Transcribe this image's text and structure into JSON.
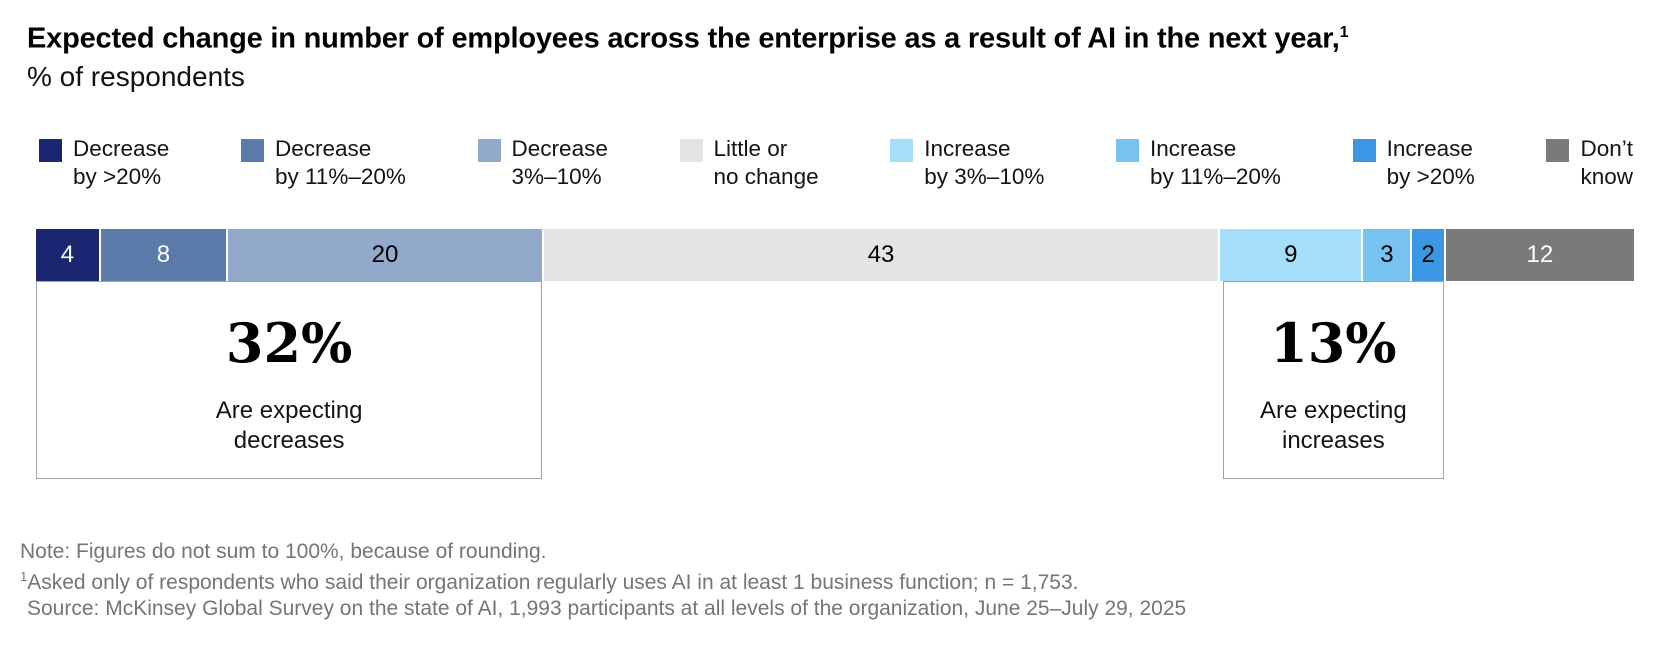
{
  "header": {
    "title": "Expected change in number of employees across the enterprise as a result of AI in the next year,",
    "title_sup": "1",
    "subtitle": "% of respondents"
  },
  "legend": {
    "items": [
      {
        "line1": "Decrease",
        "line2": "by >20%",
        "color": "#1b2671"
      },
      {
        "line1": "Decrease",
        "line2": "by 11%–20%",
        "color": "#5b7caa"
      },
      {
        "line1": "Decrease",
        "line2": "3%–10%",
        "color": "#92a9cb"
      },
      {
        "line1": "Little or",
        "line2": "no change",
        "color": "#e5e4e2"
      },
      {
        "line1": "Increase",
        "line2": "by 3%–10%",
        "color": "#a6ddf7"
      },
      {
        "line1": "Increase",
        "line2": "by 11%–20%",
        "color": "#77c2ef"
      },
      {
        "line1": "Increase",
        "line2": "by >20%",
        "color": "#3b97e4"
      },
      {
        "line1": "Don’t",
        "line2": "know",
        "color": "#7a7a7a"
      }
    ]
  },
  "chart_data": {
    "type": "bar",
    "stacked": true,
    "orientation": "horizontal",
    "title": "Expected change in number of employees across the enterprise as a result of AI in the next year",
    "unit": "% of respondents",
    "categories": [
      "Decrease by >20%",
      "Decrease by 11%–20%",
      "Decrease 3%–10%",
      "Little or no change",
      "Increase by 3%–10%",
      "Increase by 11%–20%",
      "Increase by >20%",
      "Don’t know"
    ],
    "values": [
      4,
      8,
      20,
      43,
      9,
      3,
      2,
      12
    ],
    "colors": [
      "#1b2671",
      "#5b7caa",
      "#92a9cb",
      "#e5e4e2",
      "#a6ddf7",
      "#77c2ef",
      "#3b97e4",
      "#7a7a7a"
    ],
    "label_text_colors": [
      "#ffffff",
      "#ffffff",
      "#000000",
      "#000000",
      "#000000",
      "#000000",
      "#000000",
      "#ffffff"
    ],
    "legend_position": "top",
    "annotations": [
      {
        "big_value": "32%",
        "caption_lines": [
          "Are expecting",
          "decreases"
        ],
        "start_index": 0,
        "end_index": 2
      },
      {
        "big_value": "13%",
        "caption_lines": [
          "Are expecting",
          "increases"
        ],
        "start_index": 4,
        "end_index": 6
      }
    ]
  },
  "footnotes": {
    "note": "Note: Figures do not sum to 100%, because of rounding.",
    "footnote_sup": "1",
    "footnote_text": "Asked only of respondents who said their organization regularly uses AI in at least 1 business function; n = 1,753.",
    "source": "Source: McKinsey Global Survey on the state of AI, 1,993 participants at all levels of the organization, June 25–July 29, 2025"
  }
}
